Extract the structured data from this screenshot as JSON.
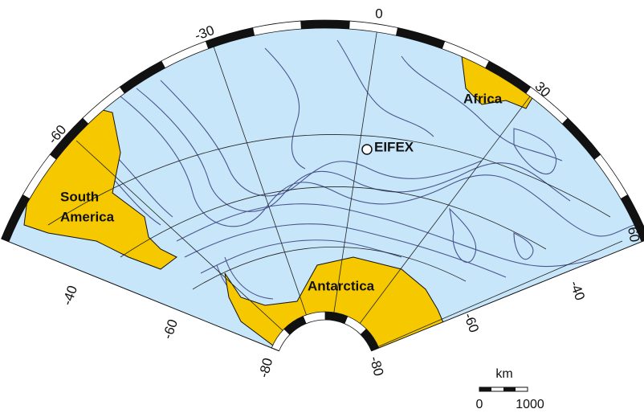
{
  "frame_labels": [
    "0",
    "-30",
    "30",
    "-60",
    "60",
    "-40",
    "-60",
    "-80",
    "-80",
    "-60",
    "-40"
  ],
  "regions": {
    "africa": "Africa",
    "south_america": [
      "South",
      "America"
    ],
    "antarctica": "Antarctica"
  },
  "station": "EIFEX",
  "scale_bar": {
    "unit": "km",
    "labels": [
      "0",
      "1000"
    ]
  }
}
